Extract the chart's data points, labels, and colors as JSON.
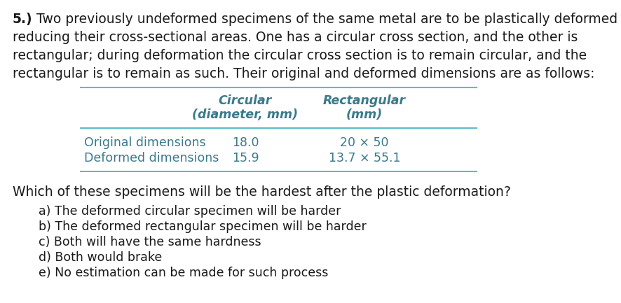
{
  "bg_color": "#ffffff",
  "text_color": "#1a1a1a",
  "table_text_color": "#3a7a8a",
  "table_line_color": "#5bbccc",
  "question_number": "5.)",
  "intro_lines": [
    "Two previously undeformed specimens of the same metal are to be plastically deformed by",
    "reducing their cross-sectional areas. One has a circular cross section, and the other is",
    "rectangular; during deformation the circular cross section is to remain circular, and the",
    "rectangular is to remain as such. Their original and deformed dimensions are as follows:"
  ],
  "col1_header_line1": "Circular",
  "col1_header_line2": "(diameter, mm)",
  "col2_header_line1": "Rectangular",
  "col2_header_line2": "(mm)",
  "row1_label": "Original dimensions",
  "row1_col1": "18.0",
  "row1_col2": "20 × 50",
  "row2_label": "Deformed dimensions",
  "row2_col1": "15.9",
  "row2_col2": "13.7 × 55.1",
  "question_text": "Which of these specimens will be the hardest after the plastic deformation?",
  "options": [
    "a) The deformed circular specimen will be harder",
    "b) The deformed rectangular specimen will be harder",
    "c) Both will have the same hardness",
    "d) Both would brake",
    "e) No estimation can be made for such process"
  ],
  "fs_body": 13.5,
  "fs_table": 12.5,
  "fs_options": 12.5
}
